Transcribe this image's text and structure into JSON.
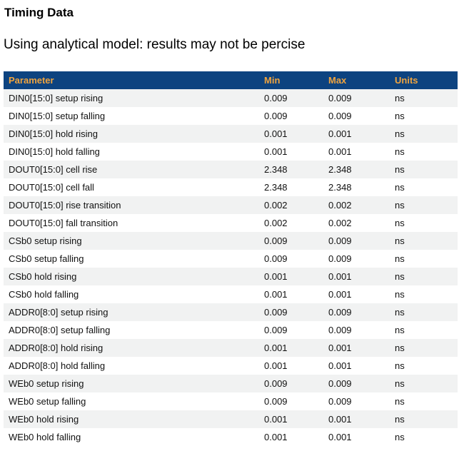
{
  "page": {
    "title": "Timing Data",
    "subtitle": "Using analytical model: results may not be percise"
  },
  "table": {
    "columns": [
      "Parameter",
      "Min",
      "Max",
      "Units"
    ],
    "rows": [
      {
        "parameter": "DIN0[15:0] setup rising",
        "min": "0.009",
        "max": "0.009",
        "units": "ns"
      },
      {
        "parameter": "DIN0[15:0] setup falling",
        "min": "0.009",
        "max": "0.009",
        "units": "ns"
      },
      {
        "parameter": "DIN0[15:0] hold rising",
        "min": "0.001",
        "max": "0.001",
        "units": "ns"
      },
      {
        "parameter": "DIN0[15:0] hold falling",
        "min": "0.001",
        "max": "0.001",
        "units": "ns"
      },
      {
        "parameter": "DOUT0[15:0] cell rise",
        "min": "2.348",
        "max": "2.348",
        "units": "ns"
      },
      {
        "parameter": "DOUT0[15:0] cell fall",
        "min": "2.348",
        "max": "2.348",
        "units": "ns"
      },
      {
        "parameter": "DOUT0[15:0] rise transition",
        "min": "0.002",
        "max": "0.002",
        "units": "ns"
      },
      {
        "parameter": "DOUT0[15:0] fall transition",
        "min": "0.002",
        "max": "0.002",
        "units": "ns"
      },
      {
        "parameter": "CSb0 setup rising",
        "min": "0.009",
        "max": "0.009",
        "units": "ns"
      },
      {
        "parameter": "CSb0 setup falling",
        "min": "0.009",
        "max": "0.009",
        "units": "ns"
      },
      {
        "parameter": "CSb0 hold rising",
        "min": "0.001",
        "max": "0.001",
        "units": "ns"
      },
      {
        "parameter": "CSb0 hold falling",
        "min": "0.001",
        "max": "0.001",
        "units": "ns"
      },
      {
        "parameter": "ADDR0[8:0] setup rising",
        "min": "0.009",
        "max": "0.009",
        "units": "ns"
      },
      {
        "parameter": "ADDR0[8:0] setup falling",
        "min": "0.009",
        "max": "0.009",
        "units": "ns"
      },
      {
        "parameter": "ADDR0[8:0] hold rising",
        "min": "0.001",
        "max": "0.001",
        "units": "ns"
      },
      {
        "parameter": "ADDR0[8:0] hold falling",
        "min": "0.001",
        "max": "0.001",
        "units": "ns"
      },
      {
        "parameter": "WEb0 setup rising",
        "min": "0.009",
        "max": "0.009",
        "units": "ns"
      },
      {
        "parameter": "WEb0 setup falling",
        "min": "0.009",
        "max": "0.009",
        "units": "ns"
      },
      {
        "parameter": "WEb0 hold rising",
        "min": "0.001",
        "max": "0.001",
        "units": "ns"
      },
      {
        "parameter": "WEb0 hold falling",
        "min": "0.001",
        "max": "0.001",
        "units": "ns"
      }
    ]
  },
  "colors": {
    "header_bg": "#0d4380",
    "header_text": "#f0a43e",
    "row_alt_bg": "#f1f2f2"
  }
}
